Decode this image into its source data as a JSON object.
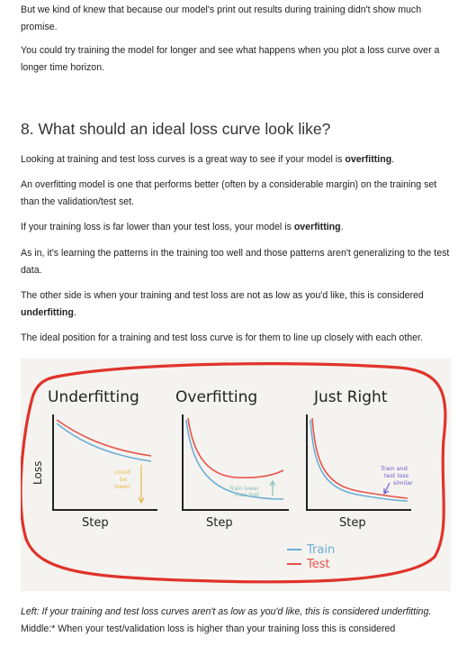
{
  "paragraphs": {
    "p1": "But we kind of knew that because our model's print out results during training didn't show much promise.",
    "p2": "You could try training the model for longer and see what happens when you plot a loss curve over a longer time horizon.",
    "heading": "8. What should an ideal loss curve look like?",
    "p3_pre": "Looking at training and test loss curves is a great way to see if your model is ",
    "p3_bold": "overfitting",
    "p3_post": ".",
    "p4": "An overfitting model is one that performs better (often by a considerable margin) on the training set than the validation/test set.",
    "p5_pre": "If your training loss is far lower than your test loss, your model is ",
    "p5_bold": "overfitting",
    "p5_post": ".",
    "p6": "As in, it's learning the patterns in the training too well and those patterns aren't generalizing to the test data.",
    "p7_pre": "The other side is when your training and test loss are not as low as you'd like, this is considered ",
    "p7_bold": "underfitting",
    "p7_post": ".",
    "p8": "The ideal position for a training and test loss curve is for them to line up closely with each other."
  },
  "figure": {
    "titles": [
      "Underfitting",
      "Overfitting",
      "Just Right"
    ],
    "ylabel": "Loss",
    "xlabels": [
      "Step",
      "Step",
      "Step"
    ],
    "annotations": {
      "underfit": [
        "could",
        "be",
        "lower"
      ],
      "overfit": [
        "Train lower",
        "than test"
      ],
      "justright": [
        "Train and",
        "test loss",
        "similar"
      ]
    },
    "legend": {
      "train": "Train",
      "test": "Test"
    },
    "colors": {
      "train": "#6aaed6",
      "test": "#e8534a",
      "annotation_yellow": "#e6b84a",
      "annotation_teal": "#7fbfb5",
      "annotation_purple": "#6a5acd",
      "outline": "#e0332b"
    }
  },
  "caption": {
    "line1": "Left: If your training and test loss curves aren't as low as you'd like, this is considered underfitting.",
    "line2": "Middle:* When your test/validation loss is higher than your training loss this is considered"
  }
}
